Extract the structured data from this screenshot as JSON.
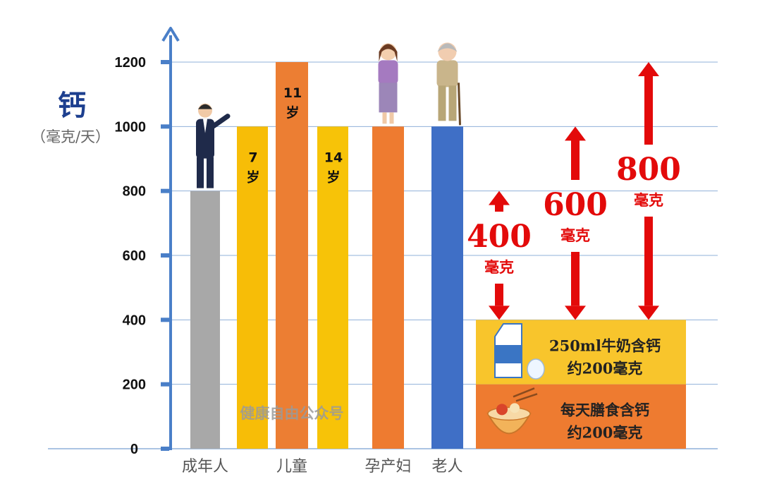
{
  "chart_data": {
    "type": "bar",
    "ylabel": "钙",
    "ylabel_unit": "（毫克/天）",
    "ylim": [
      0,
      1200
    ],
    "yticks": [
      0,
      200,
      400,
      600,
      800,
      1000,
      1200
    ],
    "grid": true,
    "bars": [
      {
        "value": 800,
        "color": "#a8a8a8",
        "label": "",
        "figure": "man"
      },
      {
        "value": 1000,
        "color": "#f7bd07",
        "label": "7\n岁"
      },
      {
        "value": 1200,
        "color": "#ec7e33",
        "label": "11\n岁"
      },
      {
        "value": 1000,
        "color": "#f7c308",
        "label": "14\n岁"
      },
      {
        "value": 1000,
        "color": "#ee7b30",
        "label": "",
        "figure": "woman"
      },
      {
        "value": 1000,
        "color": "#3f6fc6",
        "label": "",
        "figure": "elder"
      }
    ],
    "categories": [
      {
        "text": "成年人",
        "bar": 0
      },
      {
        "text": "儿童",
        "bar": 2
      },
      {
        "text": "孕产妇",
        "bar": 4
      },
      {
        "text": "老人",
        "bar": 5
      }
    ],
    "sources": [
      {
        "value": 200,
        "color": "#f8c52c",
        "lines": [
          "250ml牛奶含钙",
          "约200毫克"
        ],
        "icon": "milk-icon"
      },
      {
        "value": 200,
        "color": "#ee7b30",
        "lines": [
          "每天膳食含钙",
          "约200毫克"
        ],
        "icon": "food-bowl-icon"
      }
    ],
    "annotations": [
      {
        "value": 400,
        "number": "400",
        "unit": "毫克",
        "target": 800
      },
      {
        "value": 600,
        "number": "600",
        "unit": "毫克",
        "target": 1000
      },
      {
        "value": 800,
        "number": "800",
        "unit": "毫克",
        "target": 1200
      }
    ],
    "watermark": "健康自由公众号",
    "colors": {
      "axis": "#4a7fc8",
      "grid": "#8fb0da",
      "arrow": "#e30a0a"
    }
  }
}
